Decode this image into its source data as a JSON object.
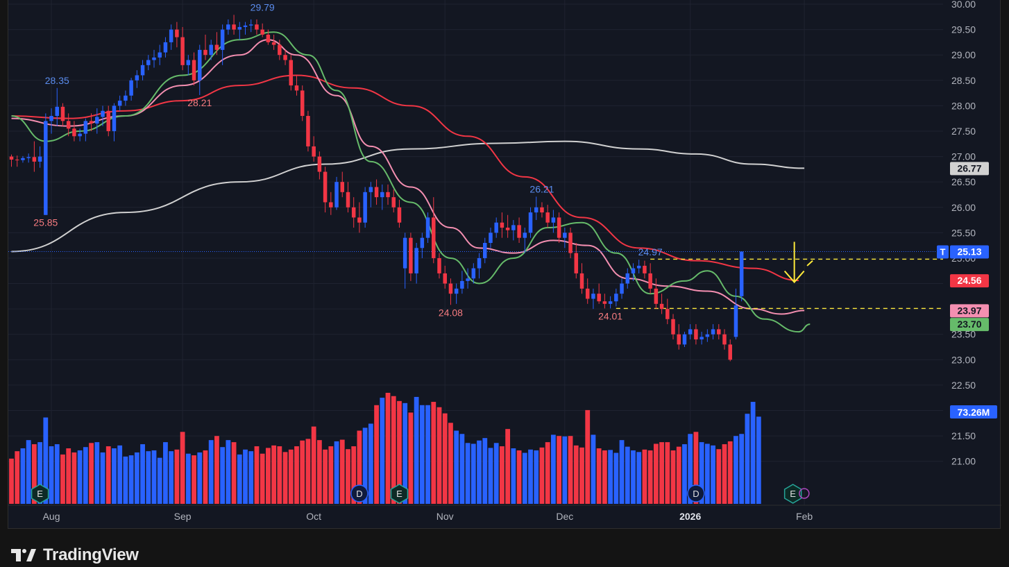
{
  "branding": {
    "logo_text": "TradingView"
  },
  "colors": {
    "background": "#131722",
    "up": "#2962ff",
    "down": "#f23645",
    "ma_fast": "#66bb6a",
    "ma_mid": "#f48fb1",
    "ma_slow": "#f23645",
    "ma_long": "#d1d1d1",
    "annotation": "#ffeb3b",
    "grid": "#1f2330",
    "text": "#b2b5be"
  },
  "chart_data": {
    "type": "candlestick",
    "price_axis": {
      "ylim": [
        20.6,
        30.0
      ],
      "ticks": [
        "30.00",
        "29.50",
        "29.00",
        "28.50",
        "28.00",
        "27.50",
        "27.00",
        "26.50",
        "26.00",
        "25.50",
        "25.00",
        "24.50",
        "24.00",
        "23.50",
        "23.00",
        "22.50",
        "22.00",
        "21.50",
        "21.00"
      ],
      "tick_values": [
        30.0,
        29.5,
        29.0,
        28.5,
        28.0,
        27.5,
        27.0,
        26.5,
        26.0,
        25.5,
        25.0,
        24.5,
        24.0,
        23.5,
        23.0,
        22.5,
        22.0,
        21.5,
        21.0
      ]
    },
    "time_axis": {
      "labels": [
        {
          "text": "Aug",
          "bar": 7,
          "bold": false
        },
        {
          "text": "Sep",
          "bar": 30,
          "bold": false
        },
        {
          "text": "Oct",
          "bar": 53,
          "bold": false
        },
        {
          "text": "Nov",
          "bar": 76,
          "bold": false
        },
        {
          "text": "Dec",
          "bar": 97,
          "bold": false
        },
        {
          "text": "2026",
          "bar": 119,
          "bold": true
        },
        {
          "text": "Feb",
          "bar": 139,
          "bold": false
        }
      ]
    },
    "candles": [
      [
        27.0,
        27.04,
        26.8,
        26.94
      ],
      [
        26.94,
        27.02,
        26.8,
        26.93
      ],
      [
        26.93,
        27.01,
        26.88,
        26.97
      ],
      [
        26.97,
        27.06,
        26.88,
        26.99
      ],
      [
        26.99,
        27.3,
        26.7,
        26.9
      ],
      [
        26.9,
        27.2,
        26.78,
        27.0
      ],
      [
        25.85,
        27.85,
        25.85,
        27.7
      ],
      [
        27.7,
        27.95,
        27.45,
        27.8
      ],
      [
        27.8,
        28.35,
        27.6,
        27.98
      ],
      [
        27.98,
        28.05,
        27.6,
        27.7
      ],
      [
        27.7,
        27.85,
        27.4,
        27.55
      ],
      [
        27.55,
        27.7,
        27.3,
        27.4
      ],
      [
        27.4,
        27.55,
        27.3,
        27.45
      ],
      [
        27.45,
        27.75,
        27.3,
        27.7
      ],
      [
        27.7,
        27.85,
        27.5,
        27.65
      ],
      [
        27.65,
        27.95,
        27.45,
        27.78
      ],
      [
        27.78,
        28.0,
        27.6,
        27.9
      ],
      [
        27.9,
        28.0,
        27.4,
        27.5
      ],
      [
        27.5,
        28.05,
        27.3,
        28.0
      ],
      [
        28.0,
        28.2,
        27.9,
        28.1
      ],
      [
        28.1,
        28.3,
        28.0,
        28.2
      ],
      [
        28.2,
        28.55,
        28.1,
        28.5
      ],
      [
        28.5,
        28.7,
        28.35,
        28.6
      ],
      [
        28.6,
        28.9,
        28.5,
        28.8
      ],
      [
        28.8,
        29.0,
        28.7,
        28.9
      ],
      [
        28.9,
        29.1,
        28.75,
        28.95
      ],
      [
        28.95,
        29.2,
        28.8,
        29.05
      ],
      [
        29.05,
        29.35,
        28.95,
        29.25
      ],
      [
        29.25,
        29.6,
        29.1,
        29.5
      ],
      [
        29.5,
        29.65,
        29.15,
        29.35
      ],
      [
        29.35,
        29.55,
        28.7,
        28.8
      ],
      [
        28.8,
        29.0,
        28.6,
        28.9
      ],
      [
        28.9,
        29.05,
        28.4,
        28.5
      ],
      [
        28.5,
        29.2,
        28.21,
        29.1
      ],
      [
        29.1,
        29.4,
        28.9,
        29.0
      ],
      [
        29.0,
        29.3,
        28.9,
        29.2
      ],
      [
        29.2,
        29.45,
        29.0,
        29.1
      ],
      [
        29.1,
        29.6,
        28.8,
        29.5
      ],
      [
        29.5,
        29.7,
        29.4,
        29.6
      ],
      [
        29.6,
        29.79,
        29.4,
        29.5
      ],
      [
        29.5,
        29.65,
        29.3,
        29.55
      ],
      [
        29.55,
        29.65,
        29.4,
        29.58
      ],
      [
        29.58,
        29.7,
        29.45,
        29.6
      ],
      [
        29.6,
        29.7,
        29.4,
        29.5
      ],
      [
        29.5,
        29.62,
        29.35,
        29.4
      ],
      [
        29.4,
        29.5,
        29.2,
        29.25
      ],
      [
        29.25,
        29.4,
        29.1,
        29.2
      ],
      [
        29.2,
        29.3,
        28.9,
        29.0
      ],
      [
        29.0,
        29.1,
        28.8,
        28.9
      ],
      [
        28.9,
        29.0,
        28.3,
        28.4
      ],
      [
        28.4,
        28.6,
        28.2,
        28.3
      ],
      [
        28.3,
        28.4,
        27.7,
        27.8
      ],
      [
        27.8,
        27.9,
        27.1,
        27.2
      ],
      [
        27.2,
        27.4,
        26.9,
        27.0
      ],
      [
        27.0,
        27.1,
        26.55,
        26.7
      ],
      [
        26.7,
        26.8,
        25.9,
        26.1
      ],
      [
        26.1,
        26.3,
        25.85,
        26.0
      ],
      [
        26.0,
        26.6,
        25.95,
        26.5
      ],
      [
        26.5,
        26.7,
        26.2,
        26.3
      ],
      [
        26.3,
        26.5,
        25.9,
        26.0
      ],
      [
        26.0,
        26.2,
        25.6,
        25.8
      ],
      [
        25.8,
        26.1,
        25.5,
        25.7
      ],
      [
        25.7,
        26.4,
        25.6,
        26.3
      ],
      [
        26.3,
        26.5,
        26.0,
        26.4
      ],
      [
        26.4,
        26.55,
        26.05,
        26.2
      ],
      [
        26.2,
        26.45,
        25.95,
        26.3
      ],
      [
        26.3,
        26.45,
        26.05,
        26.2
      ],
      [
        26.2,
        26.35,
        25.9,
        26.0
      ],
      [
        26.0,
        26.15,
        25.6,
        25.7
      ],
      [
        24.8,
        25.5,
        24.4,
        25.4
      ],
      [
        25.4,
        25.5,
        24.55,
        24.7
      ],
      [
        24.7,
        25.3,
        24.5,
        25.2
      ],
      [
        25.2,
        25.5,
        25.0,
        25.4
      ],
      [
        25.4,
        25.9,
        25.3,
        25.8
      ],
      [
        25.8,
        26.2,
        24.9,
        25.0
      ],
      [
        25.0,
        25.1,
        24.6,
        24.7
      ],
      [
        24.7,
        24.85,
        24.4,
        24.5
      ],
      [
        24.5,
        24.6,
        24.08,
        24.3
      ],
      [
        24.3,
        24.5,
        24.1,
        24.4
      ],
      [
        24.4,
        24.75,
        24.3,
        24.55
      ],
      [
        24.55,
        24.8,
        24.4,
        24.6
      ],
      [
        24.6,
        24.9,
        24.5,
        24.8
      ],
      [
        24.8,
        25.1,
        24.6,
        25.0
      ],
      [
        25.0,
        25.4,
        24.9,
        25.3
      ],
      [
        25.3,
        25.6,
        25.2,
        25.5
      ],
      [
        25.5,
        25.8,
        25.4,
        25.7
      ],
      [
        25.7,
        25.9,
        25.4,
        25.6
      ],
      [
        25.6,
        25.85,
        25.4,
        25.55
      ],
      [
        25.55,
        25.75,
        25.35,
        25.65
      ],
      [
        25.65,
        25.8,
        25.3,
        25.4
      ],
      [
        25.4,
        25.6,
        25.1,
        25.5
      ],
      [
        25.5,
        26.0,
        25.4,
        25.9
      ],
      [
        25.9,
        26.21,
        25.75,
        26.0
      ],
      [
        26.0,
        26.1,
        25.8,
        25.9
      ],
      [
        25.9,
        26.05,
        25.6,
        25.7
      ],
      [
        25.7,
        25.95,
        25.5,
        25.8
      ],
      [
        25.8,
        25.9,
        25.3,
        25.4
      ],
      [
        25.4,
        25.6,
        25.2,
        25.5
      ],
      [
        25.5,
        25.6,
        25.0,
        25.1
      ],
      [
        25.1,
        25.3,
        24.6,
        24.7
      ],
      [
        24.7,
        24.9,
        24.3,
        24.4
      ],
      [
        24.4,
        24.6,
        24.1,
        24.2
      ],
      [
        24.2,
        24.4,
        24.0,
        24.3
      ],
      [
        24.3,
        24.5,
        24.1,
        24.15
      ],
      [
        24.15,
        24.3,
        24.01,
        24.1
      ],
      [
        24.1,
        24.25,
        24.01,
        24.15
      ],
      [
        24.15,
        24.4,
        24.05,
        24.3
      ],
      [
        24.3,
        24.6,
        24.2,
        24.5
      ],
      [
        24.5,
        24.8,
        24.4,
        24.7
      ],
      [
        24.7,
        24.9,
        24.55,
        24.8
      ],
      [
        24.8,
        24.97,
        24.7,
        24.85
      ],
      [
        24.85,
        24.95,
        24.6,
        24.7
      ],
      [
        24.7,
        24.9,
        24.3,
        24.4
      ],
      [
        24.4,
        24.6,
        24.0,
        24.1
      ],
      [
        24.1,
        24.3,
        23.9,
        24.0
      ],
      [
        24.0,
        24.2,
        23.7,
        23.8
      ],
      [
        23.8,
        23.9,
        23.4,
        23.5
      ],
      [
        23.5,
        23.7,
        23.2,
        23.3
      ],
      [
        23.3,
        23.55,
        23.25,
        23.5
      ],
      [
        23.5,
        23.7,
        23.4,
        23.6
      ],
      [
        23.6,
        23.7,
        23.3,
        23.4
      ],
      [
        23.4,
        23.55,
        23.3,
        23.45
      ],
      [
        23.45,
        23.6,
        23.35,
        23.5
      ],
      [
        23.5,
        23.7,
        23.4,
        23.6
      ],
      [
        23.6,
        23.7,
        23.4,
        23.5
      ],
      [
        23.5,
        23.6,
        23.2,
        23.3
      ],
      [
        23.3,
        23.4,
        22.97,
        23.0
      ],
      [
        23.45,
        24.4,
        23.4,
        24.07
      ],
      [
        24.25,
        25.13,
        24.15,
        25.13
      ]
    ],
    "volume": [
      110,
      128,
      135,
      155,
      145,
      150,
      210,
      140,
      145,
      120,
      135,
      125,
      130,
      138,
      148,
      150,
      125,
      140,
      135,
      142,
      115,
      118,
      125,
      145,
      128,
      130,
      112,
      150,
      128,
      132,
      175,
      122,
      118,
      125,
      130,
      155,
      165,
      138,
      155,
      150,
      120,
      132,
      128,
      140,
      122,
      136,
      142,
      140,
      126,
      132,
      140,
      154,
      158,
      188,
      155,
      132,
      140,
      152,
      156,
      133,
      140,
      178,
      185,
      195,
      240,
      258,
      270,
      262,
      250,
      245,
      222,
      260,
      240,
      240,
      248,
      235,
      220,
      197,
      178,
      170,
      148,
      146,
      154,
      160,
      136,
      148,
      140,
      182,
      135,
      130,
      124,
      132,
      130,
      137,
      150,
      168,
      165,
      164,
      165,
      142,
      137,
      228,
      168,
      135,
      130,
      131,
      124,
      155,
      139,
      130,
      126,
      132,
      130,
      146,
      150,
      150,
      130,
      139,
      145,
      170,
      175,
      150,
      146,
      142,
      133,
      145,
      152,
      165,
      170,
      219,
      248,
      212
    ],
    "volume_ylim": [
      0,
      300
    ],
    "volume_scale_label": "73.26M",
    "moving_averages": [
      {
        "key": "ma_long",
        "keypoints": [
          [
            0,
            25.13
          ],
          [
            20,
            25.9
          ],
          [
            40,
            26.5
          ],
          [
            55,
            26.85
          ],
          [
            70,
            27.15
          ],
          [
            85,
            27.26
          ],
          [
            97,
            27.3
          ],
          [
            110,
            27.15
          ],
          [
            120,
            27.05
          ],
          [
            130,
            26.85
          ],
          [
            139,
            26.77
          ]
        ]
      },
      {
        "key": "ma_slow",
        "keypoints": [
          [
            0,
            27.8
          ],
          [
            10,
            27.75
          ],
          [
            20,
            27.9
          ],
          [
            30,
            28.1
          ],
          [
            40,
            28.4
          ],
          [
            50,
            28.6
          ],
          [
            60,
            28.35
          ],
          [
            70,
            28.0
          ],
          [
            80,
            27.4
          ],
          [
            90,
            26.6
          ],
          [
            100,
            25.8
          ],
          [
            110,
            25.2
          ],
          [
            120,
            24.95
          ],
          [
            130,
            24.8
          ],
          [
            138,
            24.56
          ]
        ]
      },
      {
        "key": "ma_mid",
        "keypoints": [
          [
            0,
            27.75
          ],
          [
            10,
            27.6
          ],
          [
            20,
            27.8
          ],
          [
            30,
            28.4
          ],
          [
            40,
            29.0
          ],
          [
            45,
            29.3
          ],
          [
            50,
            29.0
          ],
          [
            57,
            28.2
          ],
          [
            63,
            27.2
          ],
          [
            70,
            26.4
          ],
          [
            77,
            25.6
          ],
          [
            82,
            25.2
          ],
          [
            88,
            25.1
          ],
          [
            95,
            25.35
          ],
          [
            101,
            25.25
          ],
          [
            108,
            24.6
          ],
          [
            115,
            24.45
          ],
          [
            122,
            24.35
          ],
          [
            130,
            24.0
          ],
          [
            135,
            23.9
          ],
          [
            139,
            23.97
          ]
        ]
      },
      {
        "key": "ma_fast",
        "keypoints": [
          [
            0,
            27.8
          ],
          [
            6,
            27.3
          ],
          [
            12,
            27.5
          ],
          [
            20,
            27.8
          ],
          [
            30,
            28.6
          ],
          [
            40,
            29.3
          ],
          [
            46,
            29.45
          ],
          [
            52,
            29.0
          ],
          [
            57,
            28.3
          ],
          [
            63,
            26.9
          ],
          [
            70,
            26.1
          ],
          [
            77,
            25.0
          ],
          [
            82,
            24.5
          ],
          [
            88,
            25.0
          ],
          [
            94,
            25.6
          ],
          [
            100,
            25.7
          ],
          [
            106,
            25.1
          ],
          [
            112,
            24.3
          ],
          [
            118,
            24.55
          ],
          [
            122,
            24.75
          ],
          [
            127,
            24.25
          ],
          [
            132,
            23.8
          ],
          [
            138,
            23.55
          ],
          [
            140,
            23.7
          ]
        ]
      }
    ],
    "price_annotations": [
      {
        "text": "29.79",
        "bar": 44,
        "value": 29.79,
        "position": "above",
        "color": "#5b8def"
      },
      {
        "text": "28.35",
        "bar": 8,
        "value": 28.35,
        "position": "above",
        "color": "#5b8def"
      },
      {
        "text": "28.21",
        "bar": 33,
        "value": 28.21,
        "position": "below",
        "color": "#f77c80"
      },
      {
        "text": "25.85",
        "bar": 6,
        "value": 25.85,
        "position": "below",
        "color": "#f77c80"
      },
      {
        "text": "26.21",
        "bar": 93,
        "value": 26.21,
        "position": "above",
        "color": "#5b8def"
      },
      {
        "text": "24.08",
        "bar": 77,
        "value": 24.08,
        "position": "below",
        "color": "#f77c80"
      },
      {
        "text": "24.97",
        "bar": 112,
        "value": 24.97,
        "position": "above",
        "color": "#5b8def"
      },
      {
        "text": "24.01",
        "bar": 105,
        "value": 24.01,
        "position": "below",
        "color": "#f77c80"
      }
    ],
    "axis_labels": [
      {
        "text": "26.77",
        "value": 26.77,
        "bg": "#d1d1d1",
        "fg": "#131722"
      },
      {
        "text": "25.13",
        "value": 25.13,
        "bg": "#2962ff",
        "fg": "#ffffff",
        "tag": "T"
      },
      {
        "text": "24.56",
        "value": 24.56,
        "bg": "#f23645",
        "fg": "#ffffff"
      },
      {
        "text": "23.97",
        "value": 23.97,
        "bg": "#f48fb1",
        "fg": "#131722"
      },
      {
        "text": "23.70",
        "value": 23.7,
        "bg": "#66bb6a",
        "fg": "#131722"
      }
    ],
    "current_price": 25.13,
    "dashed_levels": [
      {
        "value": 24.98,
        "from_bar": 112
      },
      {
        "value": 24.01,
        "from_bar": 106
      }
    ],
    "event_markers": [
      {
        "text": "E",
        "bar": 5,
        "color": "#26a69a"
      },
      {
        "text": "D",
        "bar": 61,
        "color": "#2962ff"
      },
      {
        "text": "E",
        "bar": 68,
        "color": "#26a69a"
      },
      {
        "text": "D",
        "bar": 120,
        "color": "#2962ff"
      },
      {
        "text": "E",
        "bar": 137,
        "color": "#26a69a"
      }
    ],
    "arrow_annotation": {
      "bar": 137,
      "from": 25.13,
      "to": 24.5,
      "color": "#ffeb3b"
    }
  }
}
